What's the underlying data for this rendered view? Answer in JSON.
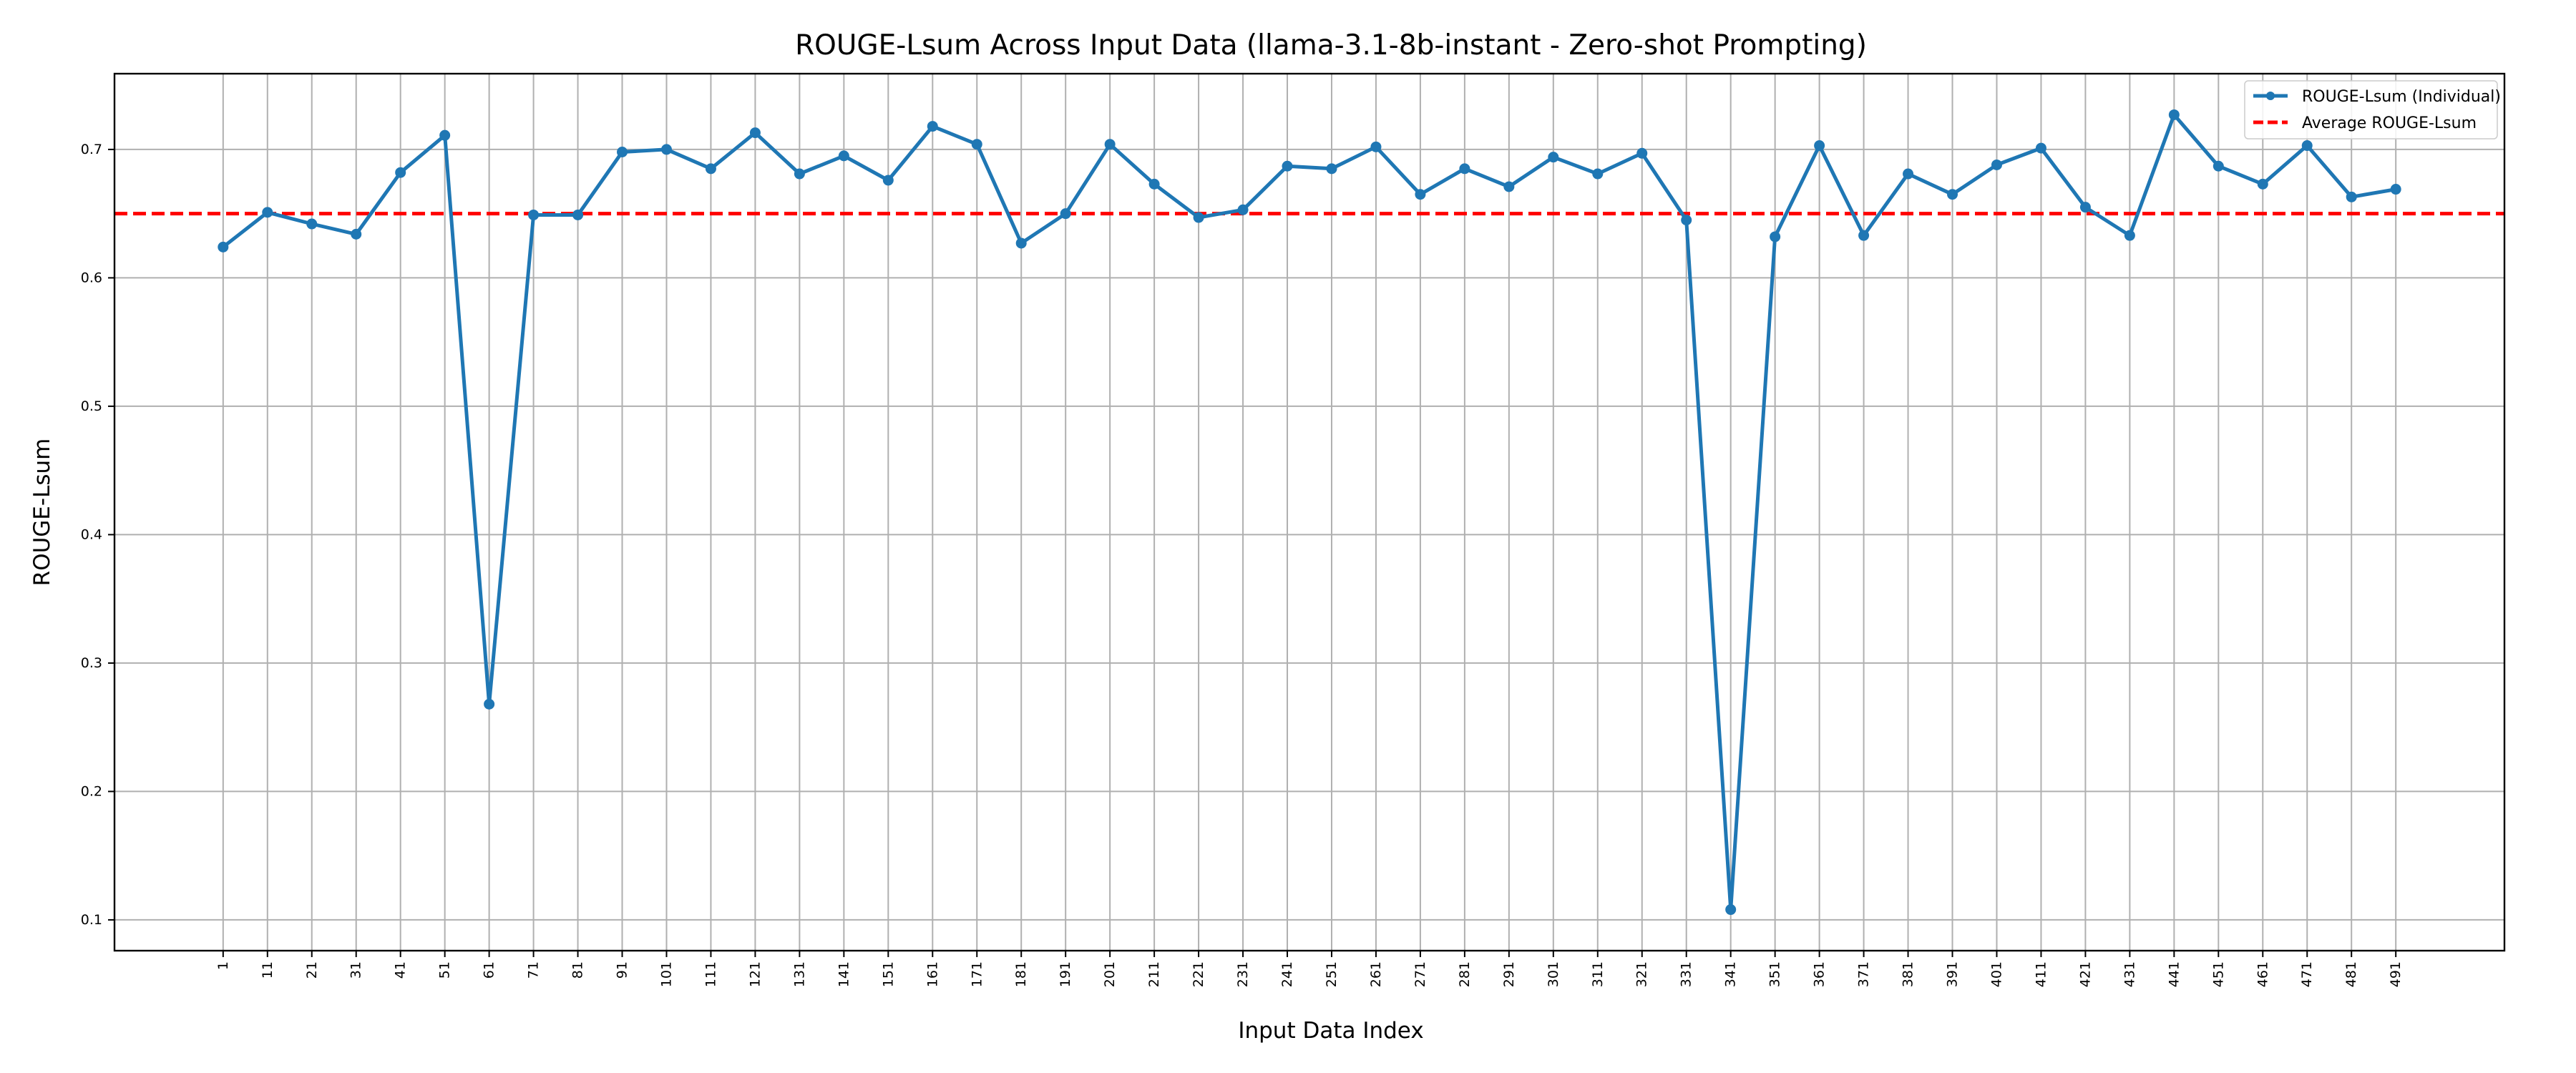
{
  "chart_data": {
    "type": "line",
    "title": "ROUGE-Lsum Across Input Data (llama-3.1-8b-instant - Zero-shot Prompting)",
    "xlabel": "Input Data Index",
    "ylabel": "ROUGE-Lsum",
    "x": [
      1,
      11,
      21,
      31,
      41,
      51,
      61,
      71,
      81,
      91,
      101,
      111,
      121,
      131,
      141,
      151,
      161,
      171,
      181,
      191,
      201,
      211,
      221,
      231,
      241,
      251,
      261,
      271,
      281,
      291,
      301,
      311,
      321,
      331,
      341,
      351,
      361,
      371,
      381,
      391,
      401,
      411,
      421,
      431,
      441,
      451,
      461,
      471,
      481,
      491
    ],
    "xlim": [
      -23.5,
      515.5
    ],
    "ylim": [
      0.076,
      0.759
    ],
    "y_ticks": [
      "0.1",
      "0.2",
      "0.3",
      "0.4",
      "0.5",
      "0.6",
      "0.7"
    ],
    "grid": true,
    "legend_position": "top-right",
    "series": [
      {
        "name": "ROUGE-Lsum (Individual)",
        "color": "#1f77b4",
        "style": "solid line with circle markers",
        "values": [
          0.624,
          0.651,
          0.642,
          0.634,
          0.682,
          0.711,
          0.268,
          0.649,
          0.649,
          0.698,
          0.7,
          0.685,
          0.713,
          0.681,
          0.695,
          0.676,
          0.718,
          0.704,
          0.627,
          0.65,
          0.704,
          0.673,
          0.647,
          0.653,
          0.687,
          0.685,
          0.702,
          0.665,
          0.685,
          0.671,
          0.694,
          0.681,
          0.697,
          0.645,
          0.108,
          0.632,
          0.703,
          0.633,
          0.681,
          0.665,
          0.688,
          0.701,
          0.655,
          0.633,
          0.727,
          0.687,
          0.673,
          0.703,
          0.663,
          0.669
        ]
      },
      {
        "name": "Average ROUGE-Lsum",
        "color": "#ff0000",
        "style": "dashed horizontal line",
        "value": 0.65
      }
    ]
  }
}
